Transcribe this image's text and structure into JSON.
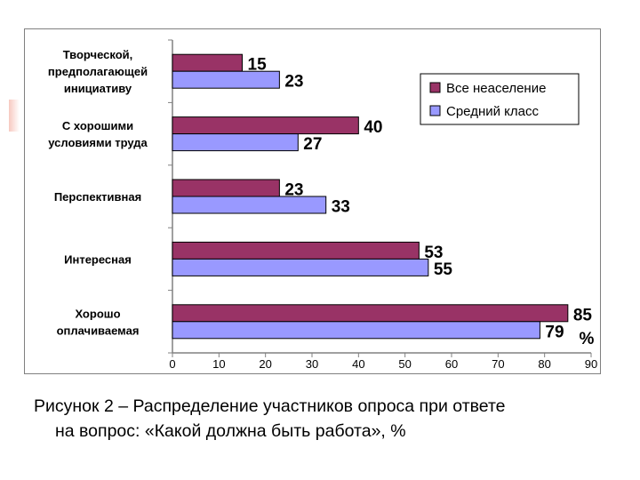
{
  "chart_data": {
    "type": "bar",
    "orientation": "horizontal",
    "categories": [
      "Творческой, предполагающей инициативу",
      "С хорошими условиями труда",
      "Перспективная",
      "Интересная",
      "Хорошо оплачиваемая"
    ],
    "category_lines": [
      [
        "Творческой,",
        "предполагающей",
        "инициативу"
      ],
      [
        "С хорошими",
        "условиями труда"
      ],
      [
        "Перспективная"
      ],
      [
        "Интересная"
      ],
      [
        "Хорошо",
        "оплачиваемая"
      ]
    ],
    "series": [
      {
        "name": "Все неаселение",
        "color": "#993366",
        "values": [
          15,
          40,
          23,
          53,
          85
        ]
      },
      {
        "name": "Средний класс",
        "color": "#9999ff",
        "values": [
          23,
          27,
          33,
          55,
          79
        ]
      }
    ],
    "xlim": [
      0,
      90
    ],
    "xticks": [
      0,
      10,
      20,
      30,
      40,
      50,
      60,
      70,
      80,
      90
    ],
    "unit_label": "%",
    "legend_position": "top-right",
    "grid": false
  },
  "caption": {
    "line1": "Рисунок 2 – Распределение участников опроса при ответе",
    "line2": "на вопрос: «Какой должна быть работа», %"
  }
}
